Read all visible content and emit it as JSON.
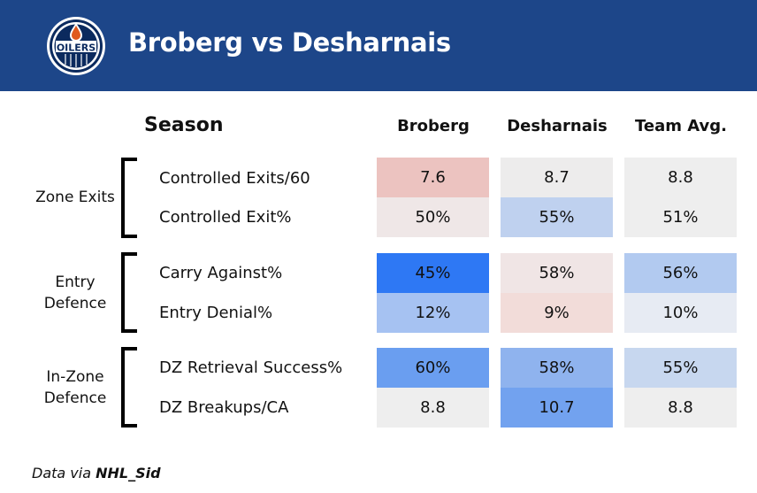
{
  "header": {
    "title": "Broberg vs Desharnais",
    "logo_text": "OILERS",
    "colors": {
      "background": "#1d4689",
      "logo_navy": "#0b2a5e",
      "logo_orange": "#e05a1e"
    }
  },
  "table": {
    "season_label": "Season",
    "columns": [
      "Broberg",
      "Desharnais",
      "Team Avg."
    ],
    "groups": [
      {
        "label_lines": [
          "Zone Exits"
        ],
        "rows": [
          {
            "metric": "Controlled Exits/60",
            "values": [
              "7.6",
              "8.7",
              "8.8"
            ],
            "colors": [
              "#ecc3c0",
              "#edecec",
              "#eeeeee"
            ]
          },
          {
            "metric": "Controlled Exit%",
            "values": [
              "50%",
              "55%",
              "51%"
            ],
            "colors": [
              "#efe7e7",
              "#bfd1ef",
              "#eeeeee"
            ]
          }
        ]
      },
      {
        "label_lines": [
          "Entry",
          "Defence"
        ],
        "rows": [
          {
            "metric": "Carry Against%",
            "values": [
              "45%",
              "58%",
              "56%"
            ],
            "colors": [
              "#2e78f4",
              "#f0e5e5",
              "#b2caf0"
            ]
          },
          {
            "metric": "Entry Denial%",
            "values": [
              "12%",
              "9%",
              "10%"
            ],
            "colors": [
              "#a6c2f2",
              "#f2dcd9",
              "#e7ebf3"
            ]
          }
        ]
      },
      {
        "label_lines": [
          "In-Zone",
          "Defence"
        ],
        "rows": [
          {
            "metric": "DZ Retrieval Success%",
            "values": [
              "60%",
              "58%",
              "55%"
            ],
            "colors": [
              "#6a9ef0",
              "#8fb3ee",
              "#c7d7ef"
            ]
          },
          {
            "metric": "DZ Breakups/CA",
            "values": [
              "8.8",
              "10.7",
              "8.8"
            ],
            "colors": [
              "#eeeeee",
              "#72a2ef",
              "#eeeeee"
            ]
          }
        ]
      }
    ]
  },
  "footer": {
    "prefix": "Data via",
    "source": "NHL_Sid"
  }
}
